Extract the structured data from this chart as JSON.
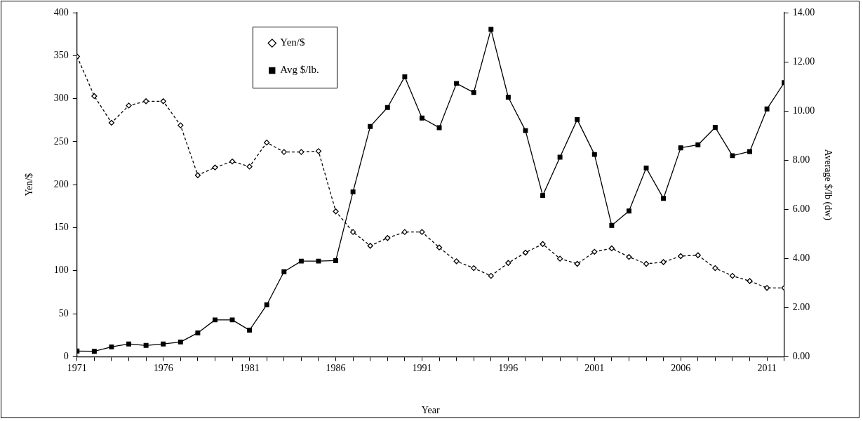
{
  "chart_data": {
    "type": "line",
    "xlabel": "Year",
    "ylabel": "Yen/$",
    "y2label": "Average $/lb (dw)",
    "x": [
      1971,
      1972,
      1973,
      1974,
      1975,
      1976,
      1977,
      1978,
      1979,
      1980,
      1981,
      1982,
      1983,
      1984,
      1985,
      1986,
      1987,
      1988,
      1989,
      1990,
      1991,
      1992,
      1993,
      1994,
      1995,
      1996,
      1997,
      1998,
      1999,
      2000,
      2001,
      2002,
      2003,
      2004,
      2005,
      2006,
      2007,
      2008,
      2009,
      2010,
      2011,
      2012
    ],
    "series": [
      {
        "name": "Yen/$",
        "color": "#000000",
        "line_style": "dashed",
        "marker": "diamond",
        "values": [
          349,
          303,
          272,
          292,
          297,
          297,
          269,
          211,
          220,
          227,
          221,
          249,
          238,
          238,
          239,
          169,
          145,
          129,
          138,
          145,
          145,
          127,
          111,
          103,
          94,
          109,
          121,
          131,
          114,
          108,
          122,
          126,
          116,
          108,
          110,
          117,
          118,
          103,
          94,
          88,
          80,
          80
        ]
      },
      {
        "name": "Avg $/lb.",
        "color": "#000000",
        "line_style": "solid",
        "marker": "square",
        "axis": "y2",
        "values": [
          0.23,
          0.22,
          0.4,
          0.52,
          0.46,
          0.52,
          0.6,
          0.97,
          1.5,
          1.5,
          1.08,
          2.11,
          3.46,
          3.89,
          3.89,
          3.91,
          6.71,
          9.37,
          10.14,
          11.39,
          9.71,
          9.32,
          11.12,
          10.75,
          13.32,
          10.56,
          9.2,
          6.56,
          8.12,
          9.65,
          8.23,
          5.34,
          5.93,
          7.68,
          6.44,
          8.5,
          8.62,
          9.33,
          8.18,
          8.35,
          10.08,
          11.15
        ]
      }
    ],
    "xlim": [
      1971,
      2012
    ],
    "xticks": [
      1971,
      {
        "value": 1972,
        "label": null
      },
      {
        "value": 1973,
        "label": null
      },
      {
        "value": 1974,
        "label": null
      },
      {
        "value": 1975,
        "label": null
      },
      1976,
      {
        "value": 1977,
        "label": null
      },
      {
        "value": 1978,
        "label": null
      },
      {
        "value": 1979,
        "label": null
      },
      {
        "value": 1980,
        "label": null
      },
      1981,
      {
        "value": 1982,
        "label": null
      },
      {
        "value": 1983,
        "label": null
      },
      {
        "value": 1984,
        "label": null
      },
      {
        "value": 1985,
        "label": null
      },
      1986,
      {
        "value": 1987,
        "label": null
      },
      {
        "value": 1988,
        "label": null
      },
      {
        "value": 1989,
        "label": null
      },
      {
        "value": 1990,
        "label": null
      },
      1991,
      {
        "value": 1992,
        "label": null
      },
      {
        "value": 1993,
        "label": null
      },
      {
        "value": 1994,
        "label": null
      },
      {
        "value": 1995,
        "label": null
      },
      1996,
      {
        "value": 1997,
        "label": null
      },
      {
        "value": 1998,
        "label": null
      },
      {
        "value": 1999,
        "label": null
      },
      {
        "value": 2000,
        "label": null
      },
      2001,
      {
        "value": 2002,
        "label": null
      },
      {
        "value": 2003,
        "label": null
      },
      {
        "value": 2004,
        "label": null
      },
      {
        "value": 2005,
        "label": null
      },
      2006,
      {
        "value": 2007,
        "label": null
      },
      {
        "value": 2008,
        "label": null
      },
      {
        "value": 2009,
        "label": null
      },
      {
        "value": 2010,
        "label": null
      },
      2011,
      {
        "value": 2012,
        "label": null
      }
    ],
    "ylim": [
      0,
      400
    ],
    "yticks": [
      0,
      50,
      100,
      150,
      200,
      250,
      300,
      350,
      400
    ],
    "y2lim": [
      0,
      14
    ],
    "y2ticks": [
      {
        "value": 0,
        "label": "0.00"
      },
      {
        "value": 2,
        "label": "2.00"
      },
      {
        "value": 4,
        "label": "4.00"
      },
      {
        "value": 6,
        "label": "6.00"
      },
      {
        "value": 8,
        "label": "8.00"
      },
      {
        "value": 10,
        "label": "10.00"
      },
      {
        "value": 12,
        "label": "12.00"
      },
      {
        "value": 14,
        "label": "14.00"
      }
    ],
    "grid": false,
    "legend": "top left"
  }
}
